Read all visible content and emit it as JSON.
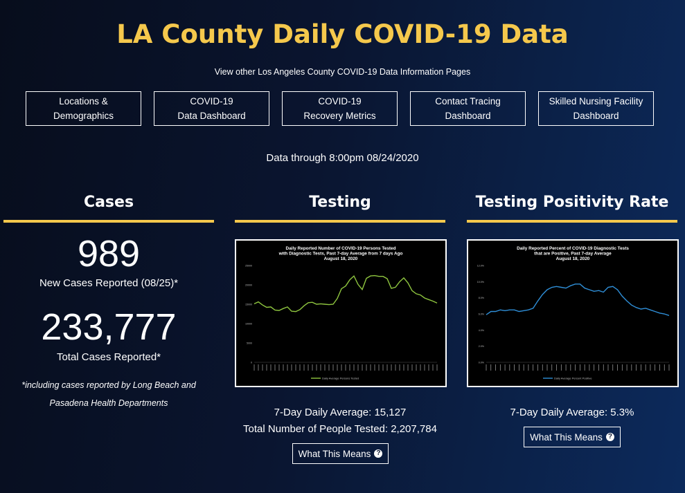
{
  "header": {
    "title": "LA County Daily COVID-19 Data",
    "subtitle": "View other Los Angeles County COVID-19 Data Information Pages"
  },
  "nav": [
    {
      "label": "Locations &\nDemographics"
    },
    {
      "label": "COVID-19\nData Dashboard"
    },
    {
      "label": "COVID-19\nRecovery Metrics"
    },
    {
      "label": "Contact Tracing\nDashboard"
    },
    {
      "label": "Skilled Nursing Facility\nDashboard"
    }
  ],
  "as_of": "Data through 8:00pm 08/24/2020",
  "cases": {
    "heading": "Cases",
    "new_value": "989",
    "new_label": "New Cases Reported (08/25)*",
    "total_value": "233,777",
    "total_label": "Total Cases Reported*",
    "footnote": "*including cases reported by Long Beach and Pasadena Health Departments"
  },
  "testing": {
    "heading": "Testing",
    "avg_label": "7-Day Daily Average: 15,127",
    "total_label": "Total Number of People Tested: 2,207,784",
    "button": "What This Means"
  },
  "positivity": {
    "heading": "Testing Positivity Rate",
    "avg_label": "7-Day Daily Average: 5.3%",
    "button": "What This Means"
  },
  "colors": {
    "accent": "#f5c84c",
    "testing_line": "#8fc63f",
    "positivity_line": "#2f8fd8"
  },
  "chart_data": [
    {
      "type": "line",
      "title_lines": [
        "Daily Reported Number of COVID-19 Persons Tested",
        "with Diagnostic Tests, Past 7-day Average from 7 days Ago",
        "August 18, 2020"
      ],
      "yticks": [
        "25000",
        "20000",
        "15000",
        "10000",
        "5000",
        "0"
      ],
      "ylim": [
        0,
        25000
      ],
      "series": [
        {
          "name": "Daily Average Persons Tested",
          "color": "#8fc63f",
          "values": [
            15100,
            15600,
            14800,
            14200,
            14300,
            13500,
            13400,
            13900,
            14300,
            13200,
            13100,
            13600,
            14600,
            15400,
            15500,
            15000,
            15100,
            15000,
            14900,
            15000,
            16500,
            19000,
            19700,
            21300,
            22300,
            20100,
            18800,
            21700,
            22300,
            22400,
            22200,
            22200,
            21600,
            19100,
            19400,
            20800,
            21800,
            20500,
            18500,
            17700,
            17400,
            16600,
            16200,
            15800,
            15300
          ]
        }
      ]
    },
    {
      "type": "line",
      "title_lines": [
        "Daily Reported Percent of COVID-19 Diagnostic Tests",
        "that are Positive, Past 7-day Average",
        "August 18, 2020"
      ],
      "yticks": [
        "12.0%",
        "10.0%",
        "8.0%",
        "6.0%",
        "4.0%",
        "2.0%",
        "0.0%"
      ],
      "ylim": [
        0,
        12
      ],
      "series": [
        {
          "name": "Daily Average Percent Positive",
          "color": "#2f8fd8",
          "values": [
            5.9,
            6.3,
            6.3,
            6.5,
            6.4,
            6.5,
            6.5,
            6.3,
            6.4,
            6.5,
            6.7,
            7.6,
            8.4,
            9.0,
            9.3,
            9.4,
            9.3,
            9.2,
            9.5,
            9.7,
            9.7,
            9.2,
            9.0,
            8.8,
            8.9,
            8.7,
            9.3,
            9.4,
            9.0,
            8.2,
            7.6,
            7.1,
            6.8,
            6.6,
            6.7,
            6.5,
            6.3,
            6.1,
            6.0,
            5.8
          ]
        }
      ]
    }
  ]
}
